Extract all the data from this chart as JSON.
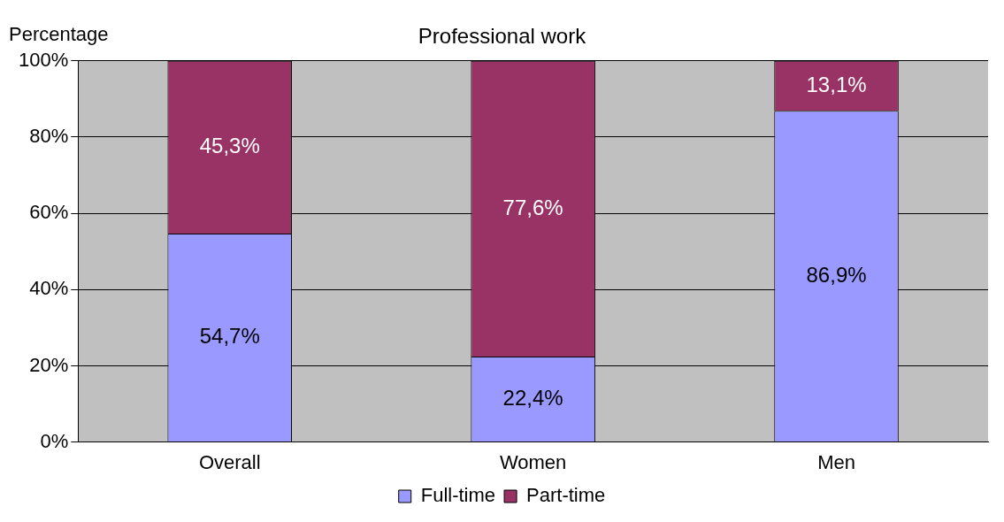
{
  "chart_data": {
    "type": "bar",
    "title": "Professional work",
    "ylabel": "Percentage",
    "stacked": true,
    "categories": [
      "Overall",
      "Women",
      "Men"
    ],
    "series": [
      {
        "name": "Full-time",
        "color": "#9999ff",
        "values": [
          54.7,
          22.4,
          86.9
        ],
        "value_labels": [
          "54,7%",
          "22,4%",
          "86,9%"
        ]
      },
      {
        "name": "Part-time",
        "color": "#993366",
        "values": [
          45.3,
          77.6,
          13.1
        ],
        "value_labels": [
          "45,3%",
          "77,6%",
          "13,1%"
        ]
      }
    ],
    "ylim": [
      0,
      100
    ],
    "yticks": [
      {
        "value": 0,
        "label": "0%"
      },
      {
        "value": 20,
        "label": "20%"
      },
      {
        "value": 40,
        "label": "40%"
      },
      {
        "value": 60,
        "label": "60%"
      },
      {
        "value": 80,
        "label": "80%"
      },
      {
        "value": 100,
        "label": "100%"
      }
    ],
    "grid": "y",
    "legend": "bottom"
  }
}
